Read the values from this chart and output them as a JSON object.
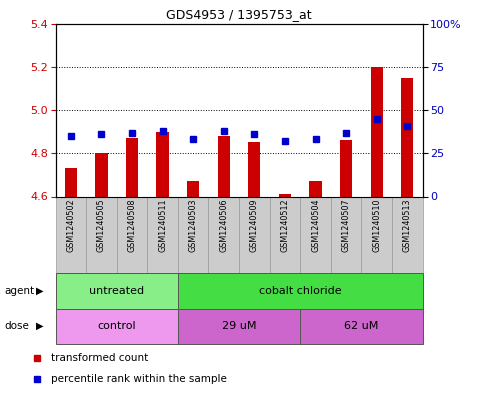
{
  "title": "GDS4953 / 1395753_at",
  "samples": [
    "GSM1240502",
    "GSM1240505",
    "GSM1240508",
    "GSM1240511",
    "GSM1240503",
    "GSM1240506",
    "GSM1240509",
    "GSM1240512",
    "GSM1240504",
    "GSM1240507",
    "GSM1240510",
    "GSM1240513"
  ],
  "transformed_counts": [
    4.73,
    4.8,
    4.87,
    4.9,
    4.67,
    4.88,
    4.85,
    4.61,
    4.67,
    4.86,
    5.2,
    5.15
  ],
  "percentile_ranks": [
    35,
    36,
    37,
    38,
    33,
    38,
    36,
    32,
    33,
    37,
    45,
    41
  ],
  "ylim_left": [
    4.6,
    5.4
  ],
  "ylim_right": [
    0,
    100
  ],
  "yticks_left": [
    4.6,
    4.8,
    5.0,
    5.2,
    5.4
  ],
  "yticks_right": [
    0,
    25,
    50,
    75,
    100
  ],
  "ytick_labels_right": [
    "0",
    "25",
    "50",
    "75",
    "100%"
  ],
  "bar_color": "#cc0000",
  "dot_color": "#0000cc",
  "bar_bottom": 4.6,
  "agent_groups": [
    {
      "label": "untreated",
      "start": 0,
      "end": 4,
      "color": "#88ee88"
    },
    {
      "label": "cobalt chloride",
      "start": 4,
      "end": 12,
      "color": "#44dd44"
    }
  ],
  "dose_groups": [
    {
      "label": "control",
      "start": 0,
      "end": 4,
      "color": "#ee99ee"
    },
    {
      "label": "29 uM",
      "start": 4,
      "end": 8,
      "color": "#cc66cc"
    },
    {
      "label": "62 uM",
      "start": 8,
      "end": 12,
      "color": "#cc66cc"
    }
  ],
  "legend_items": [
    {
      "label": "transformed count",
      "color": "#cc0000"
    },
    {
      "label": "percentile rank within the sample",
      "color": "#0000cc"
    }
  ],
  "tick_label_color_left": "#cc0000",
  "tick_label_color_right": "#0000bb",
  "sample_box_color": "#cccccc",
  "sample_box_edge": "#999999"
}
